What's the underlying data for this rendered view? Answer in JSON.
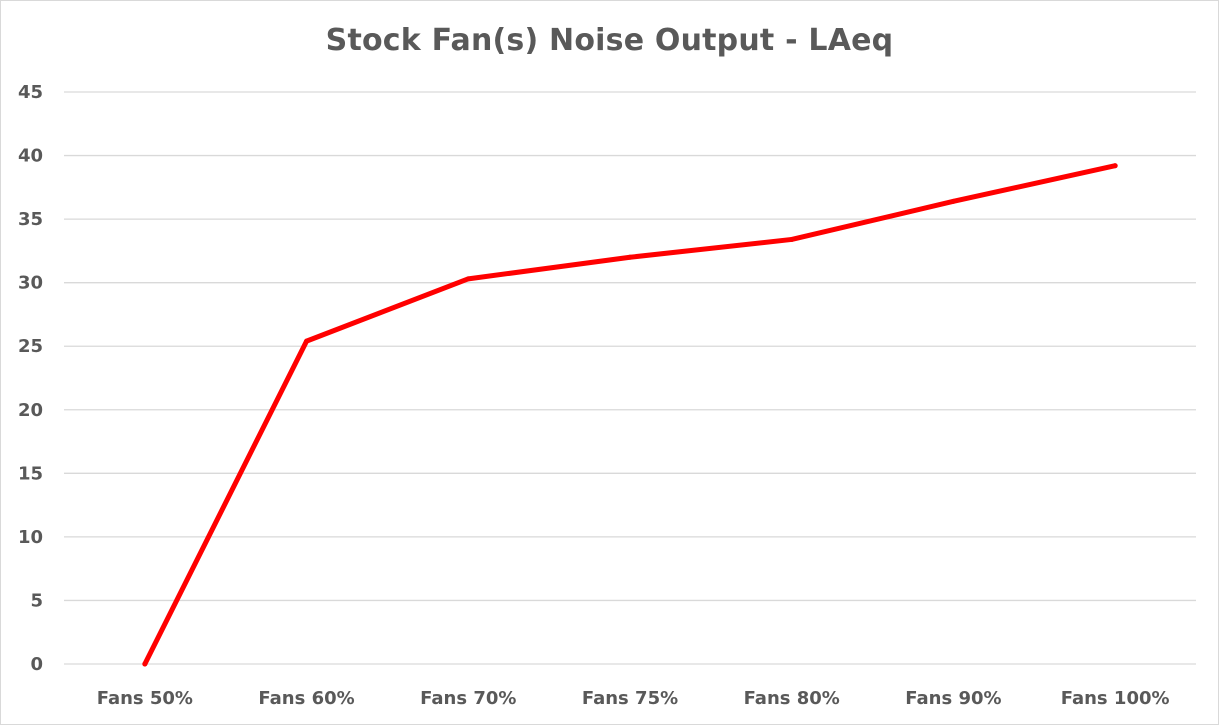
{
  "chart_data": {
    "type": "line",
    "title": "Stock Fan(s) Noise Output - LAeq",
    "categories": [
      "Fans 50%",
      "Fans 60%",
      "Fans 70%",
      "Fans 75%",
      "Fans 80%",
      "Fans 90%",
      "Fans 100%"
    ],
    "series": [
      {
        "values": [
          0,
          25.4,
          30.3,
          32.0,
          33.4,
          36.4,
          39.2
        ],
        "color": "#ff0000"
      }
    ],
    "ylim": [
      0,
      45
    ],
    "yticks": [
      0,
      5,
      10,
      15,
      20,
      25,
      30,
      35,
      40,
      45
    ],
    "grid": true,
    "legend": "none",
    "xlabel": "",
    "ylabel": ""
  }
}
